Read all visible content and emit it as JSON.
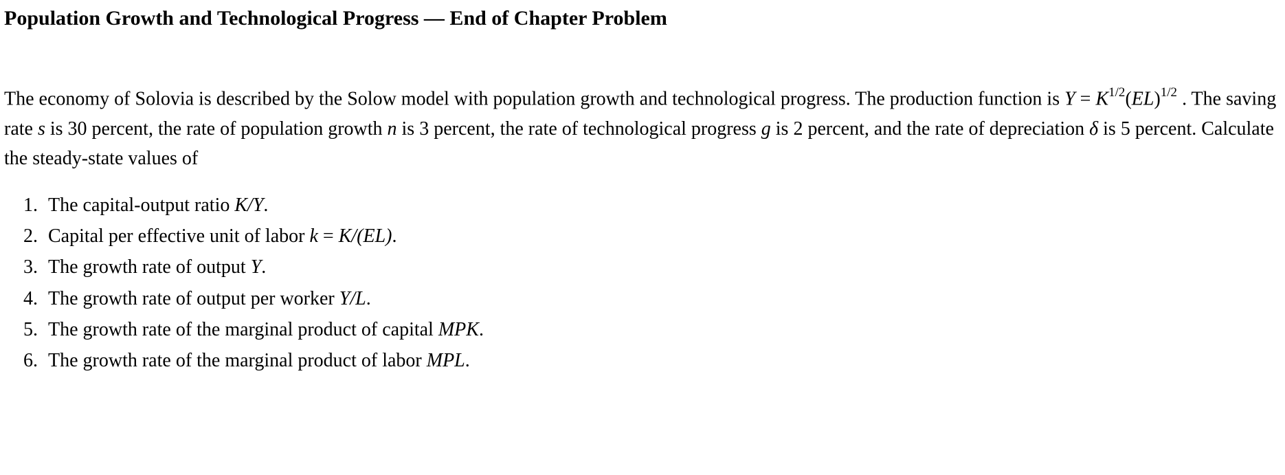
{
  "title": "Population Growth and Technological Progress — End of Chapter Problem",
  "paragraph": {
    "lead_1": "The economy of Solovia is described by the Solow model with population growth and technological progress. The production function is ",
    "func_Y_eq": "Y",
    "func_eq_sign": " = ",
    "func_K": "K",
    "func_exp1": "1/2",
    "func_open_paren": "(",
    "func_EL": "EL",
    "func_close_paren": ")",
    "func_exp2": "1/2",
    "lead_2": " . The saving rate ",
    "var_s": "s",
    "lead_3": " is 30 percent, the rate of population growth ",
    "var_n": "n",
    "lead_4": " is 3 percent, the rate of technological progress ",
    "var_g": "g",
    "lead_5": " is 2 percent, and the rate of depreciation ",
    "var_delta": "δ",
    "lead_6": " is 5 percent.  Calculate the steady-state values of"
  },
  "list": {
    "item1": {
      "num": "1.",
      "pre": "The capital-output ratio ",
      "var": "K/Y",
      "post": "."
    },
    "item2": {
      "num": "2.",
      "pre": "Capital per effective unit of labor ",
      "var1": "k",
      "mid": " = ",
      "var2": "K/(EL)",
      "post": "."
    },
    "item3": {
      "num": "3.",
      "pre": "The growth rate of output ",
      "var": "Y",
      "post": "."
    },
    "item4": {
      "num": "4.",
      "pre": "The growth rate of output per worker ",
      "var": "Y/L",
      "post": "."
    },
    "item5": {
      "num": "5.",
      "pre": "The growth rate of the marginal product of capital ",
      "var": "MPK",
      "post": "."
    },
    "item6": {
      "num": "6.",
      "pre": "The growth rate of the marginal product of labor ",
      "var": "MPL",
      "post": "."
    }
  }
}
